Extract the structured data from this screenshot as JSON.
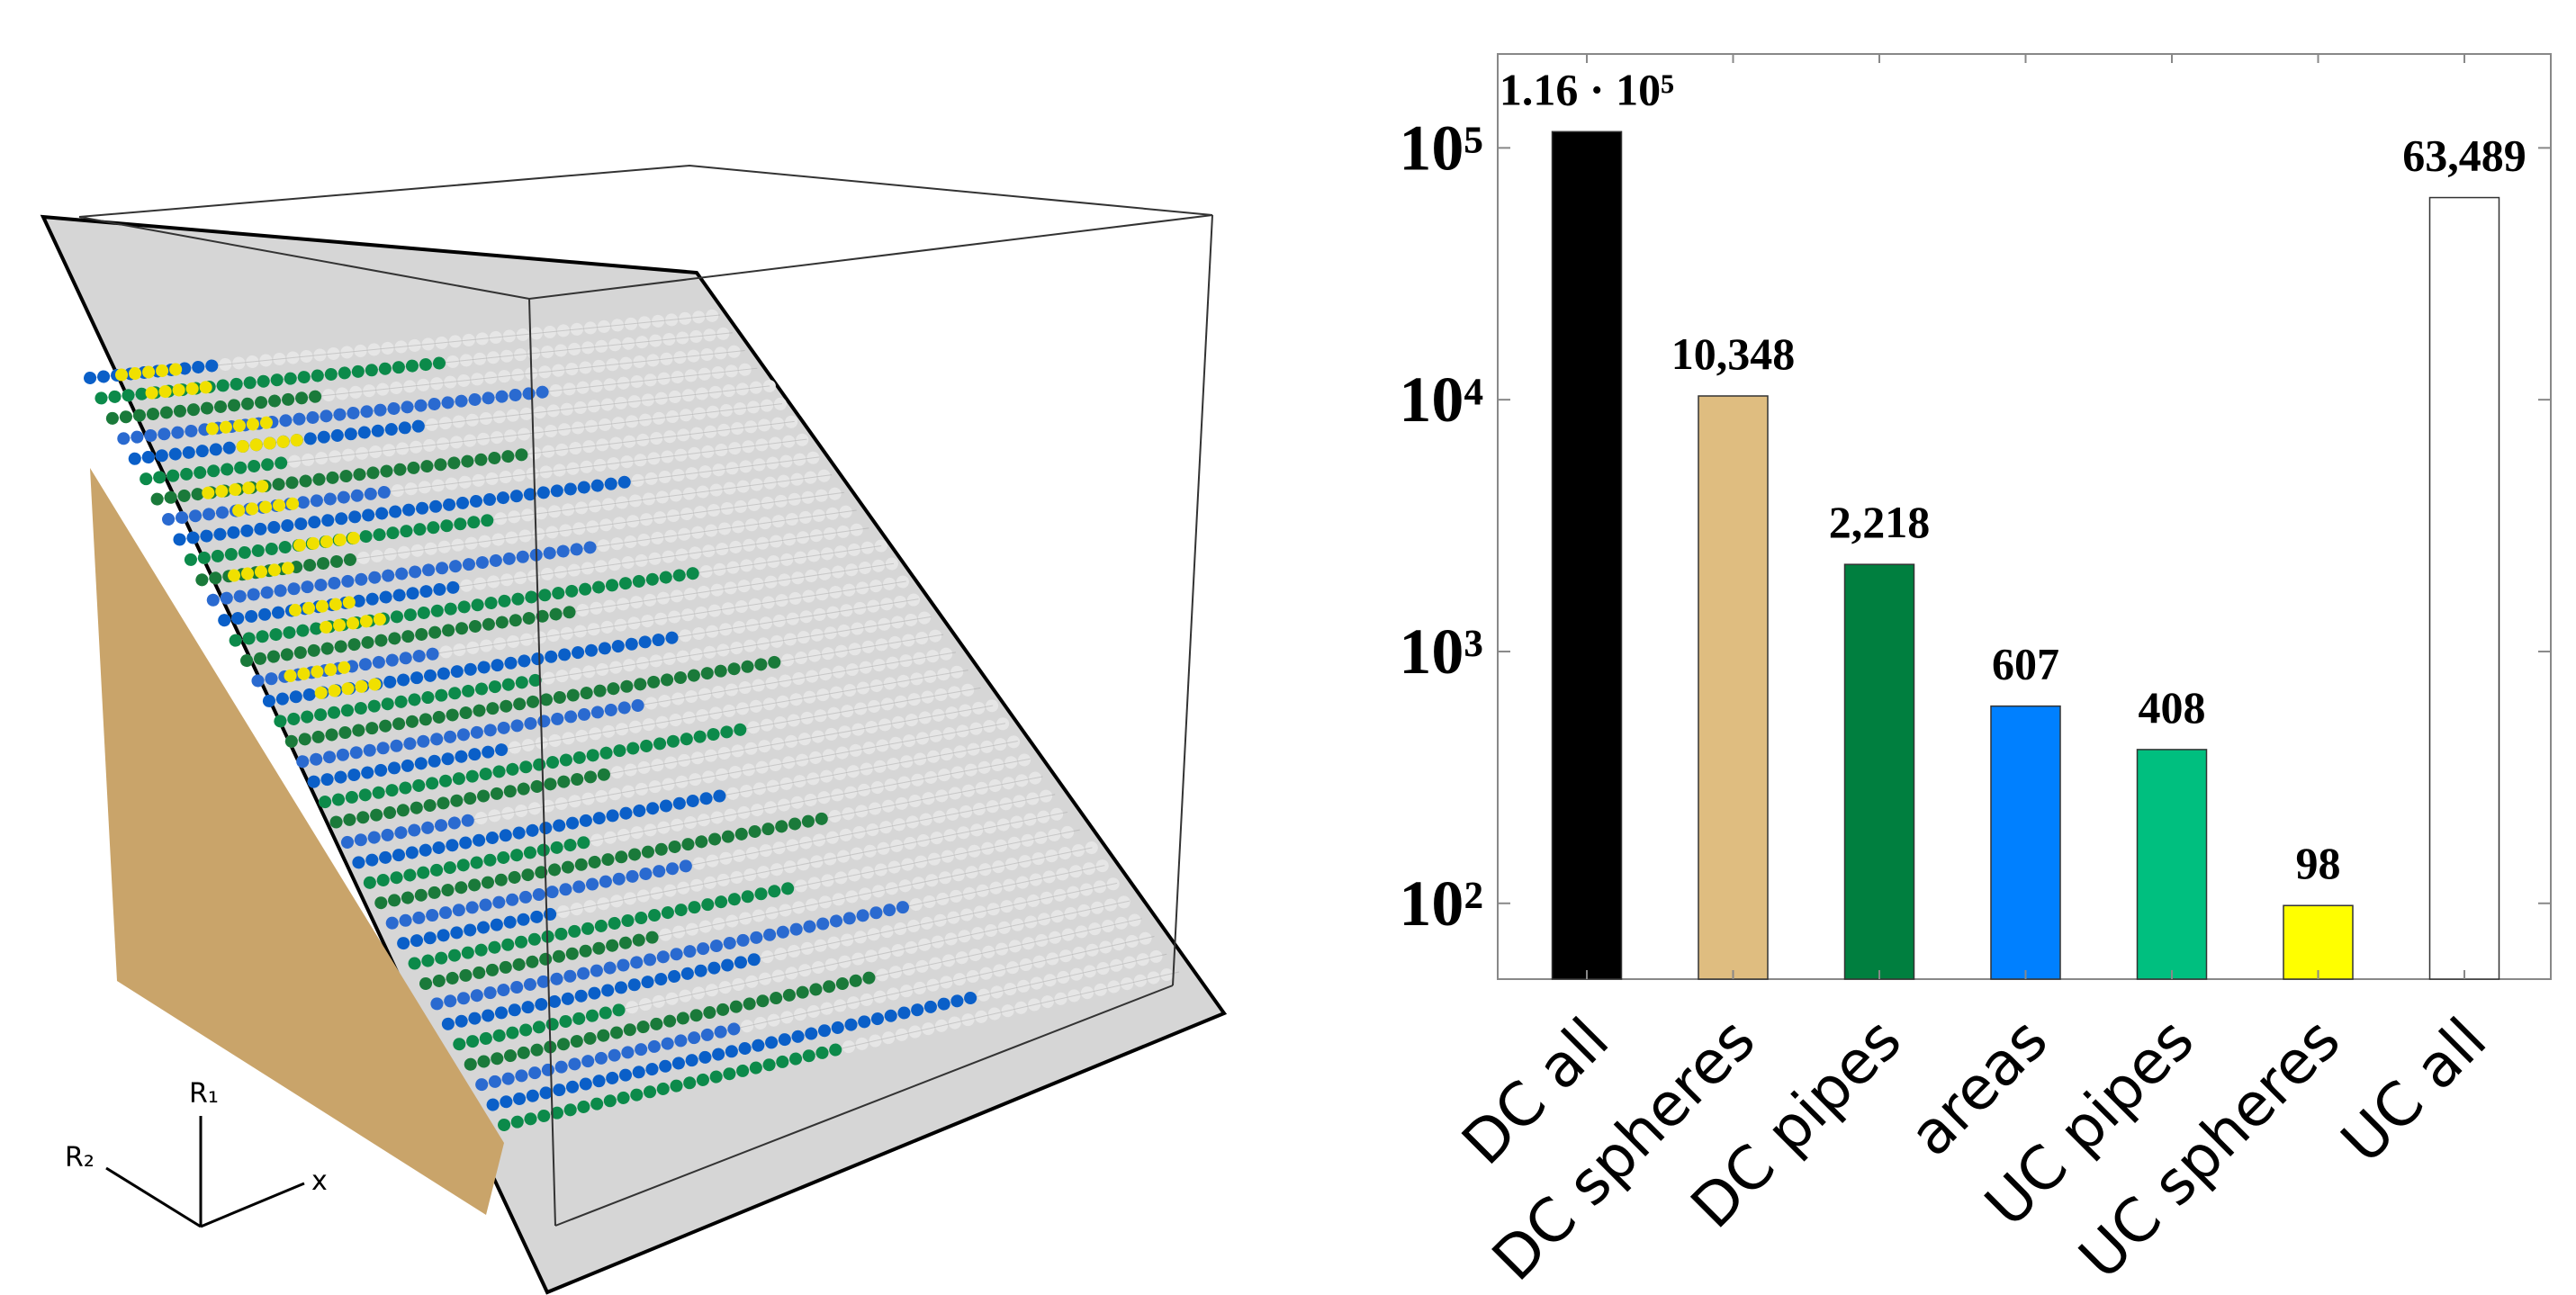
{
  "scene_axes": [
    "R₁",
    "R₂",
    "x"
  ],
  "chart_data": {
    "type": "bar",
    "log_scale": true,
    "categories": [
      "DC all",
      "DC spheres",
      "DC pipes",
      "areas",
      "UC pipes",
      "UC spheres",
      "UC all"
    ],
    "values": [
      116000,
      10348,
      2218,
      607,
      408,
      98,
      63489
    ],
    "value_labels": [
      "1.16 · 10⁵",
      "10,348",
      "2,218",
      "607",
      "408",
      "98",
      "63,489"
    ],
    "colors": [
      "#000000",
      "#dfbd80",
      "#007f3f",
      "#0080ff",
      "#00bf7f",
      "#ffff00",
      "#ffffff"
    ],
    "ylim": [
      50,
      236000
    ],
    "yticks": [
      {
        "value": 100,
        "label": "10²"
      },
      {
        "value": 1000,
        "label": "10³"
      },
      {
        "value": 10000,
        "label": "10⁴"
      },
      {
        "value": 100000,
        "label": "10⁵"
      }
    ]
  }
}
